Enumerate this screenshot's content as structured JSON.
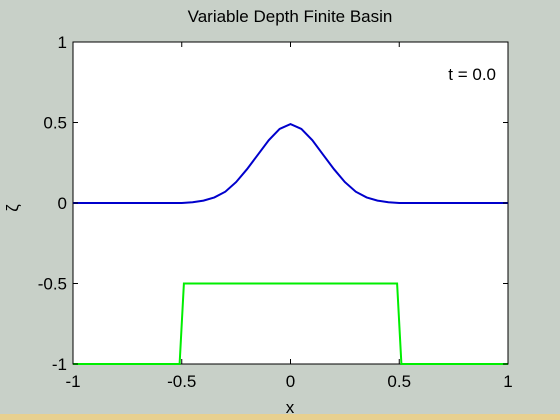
{
  "chart_data": {
    "type": "line",
    "title": "Variable Depth Finite Basin",
    "xlabel": "x",
    "ylabel": "ζ",
    "annotation": "t = 0.0",
    "xlim": [
      -1,
      1
    ],
    "ylim": [
      -1,
      1
    ],
    "xticks": [
      -1,
      -0.5,
      0,
      0.5,
      1
    ],
    "xtick_labels": [
      "-1",
      "-0.5",
      "0",
      "0.5",
      "1"
    ],
    "yticks": [
      -1,
      -0.5,
      0,
      0.5,
      1
    ],
    "ytick_labels": [
      "-1",
      "-0.5",
      "0",
      "0.5",
      "1"
    ],
    "grid": false,
    "series": [
      {
        "color": "#0000cc",
        "x": [
          -1,
          -0.6,
          -0.5,
          -0.45,
          -0.4,
          -0.35,
          -0.3,
          -0.25,
          -0.2,
          -0.15,
          -0.1,
          -0.05,
          0,
          0.05,
          0.1,
          0.15,
          0.2,
          0.25,
          0.3,
          0.35,
          0.4,
          0.45,
          0.5,
          0.6,
          1
        ],
        "y": [
          0,
          0,
          0.0,
          0.005,
          0.015,
          0.035,
          0.07,
          0.13,
          0.21,
          0.3,
          0.39,
          0.46,
          0.49,
          0.46,
          0.39,
          0.3,
          0.21,
          0.13,
          0.07,
          0.035,
          0.015,
          0.005,
          0.0,
          0,
          0
        ]
      },
      {
        "color": "#00ee00",
        "x": [
          -1,
          -0.51,
          -0.49,
          0.49,
          0.51,
          1
        ],
        "y": [
          -1,
          -1,
          -0.5,
          -0.5,
          -1,
          -1
        ]
      }
    ]
  }
}
